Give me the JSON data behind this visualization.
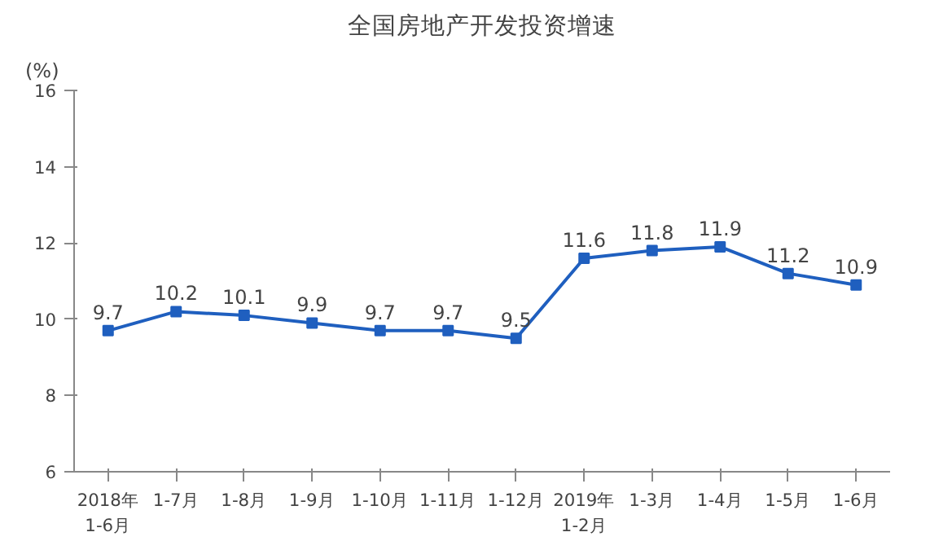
{
  "chart_data": {
    "type": "line",
    "title": "全国房地产开发投资增速",
    "ylabel": "(%)",
    "categories": [
      "2018年\n1-6月",
      "1-7月",
      "1-8月",
      "1-9月",
      "1-10月",
      "1-11月",
      "1-12月",
      "2019年\n1-2月",
      "1-3月",
      "1-4月",
      "1-5月",
      "1-6月"
    ],
    "series": [
      {
        "color": "#1f5fbf",
        "values": [
          9.7,
          10.2,
          10.1,
          9.9,
          9.7,
          9.7,
          9.5,
          11.6,
          11.8,
          11.9,
          11.2,
          10.9
        ]
      }
    ],
    "ylim": [
      6,
      16
    ],
    "yticks": [
      6,
      8,
      10,
      12,
      14,
      16
    ],
    "grid": false,
    "marker": "square",
    "line_style": "solid",
    "data_labels": true
  }
}
